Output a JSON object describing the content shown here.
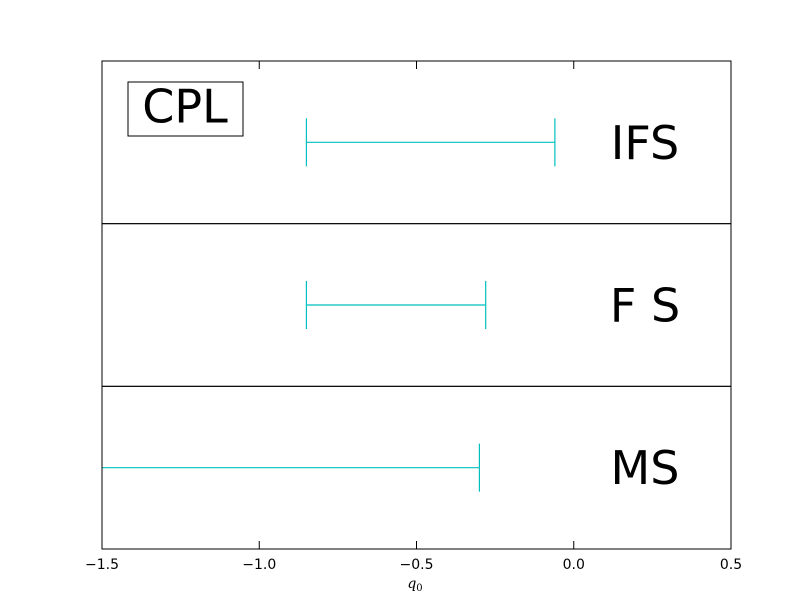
{
  "chart_data": {
    "type": "interval",
    "xlabel": "q",
    "xlabel_sub": "0",
    "xlim": [
      -1.5,
      0.5
    ],
    "xticks": [
      {
        "value": -1.5,
        "label": "−1.5"
      },
      {
        "value": -1.0,
        "label": "−1.0"
      },
      {
        "value": -0.5,
        "label": "−0.5"
      },
      {
        "value": 0.0,
        "label": "0.0"
      },
      {
        "value": 0.5,
        "label": "0.5"
      }
    ],
    "legend_box": "CPL",
    "color": "#00bfbf",
    "panels": [
      {
        "name": "IFS",
        "low": -0.85,
        "high": -0.06
      },
      {
        "name": "F S",
        "low": -0.85,
        "high": -0.28
      },
      {
        "name": "MS",
        "low": -1.6,
        "high": -0.3
      }
    ]
  }
}
